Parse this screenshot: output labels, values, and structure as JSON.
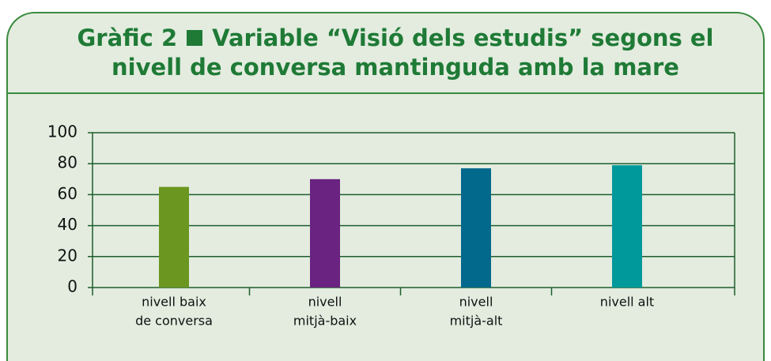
{
  "chart_data": {
    "type": "bar",
    "label": "Gràfic 2",
    "title": "Variable “Visió dels estudis” segons el nivell de conversa mantinguda amb la mare",
    "categories": [
      [
        "nivell baix",
        "de conversa"
      ],
      [
        "nivell",
        "mitjà-baix"
      ],
      [
        "nivell",
        "mitjà-alt"
      ],
      [
        "nivell alt"
      ]
    ],
    "values": [
      65,
      70,
      77,
      79
    ],
    "colors": [
      "#6b961f",
      "#6a2380",
      "#02688c",
      "#00999b"
    ],
    "ylim": [
      0,
      100
    ],
    "yticks": [
      0,
      20,
      40,
      60,
      80,
      100
    ],
    "grid": true
  }
}
